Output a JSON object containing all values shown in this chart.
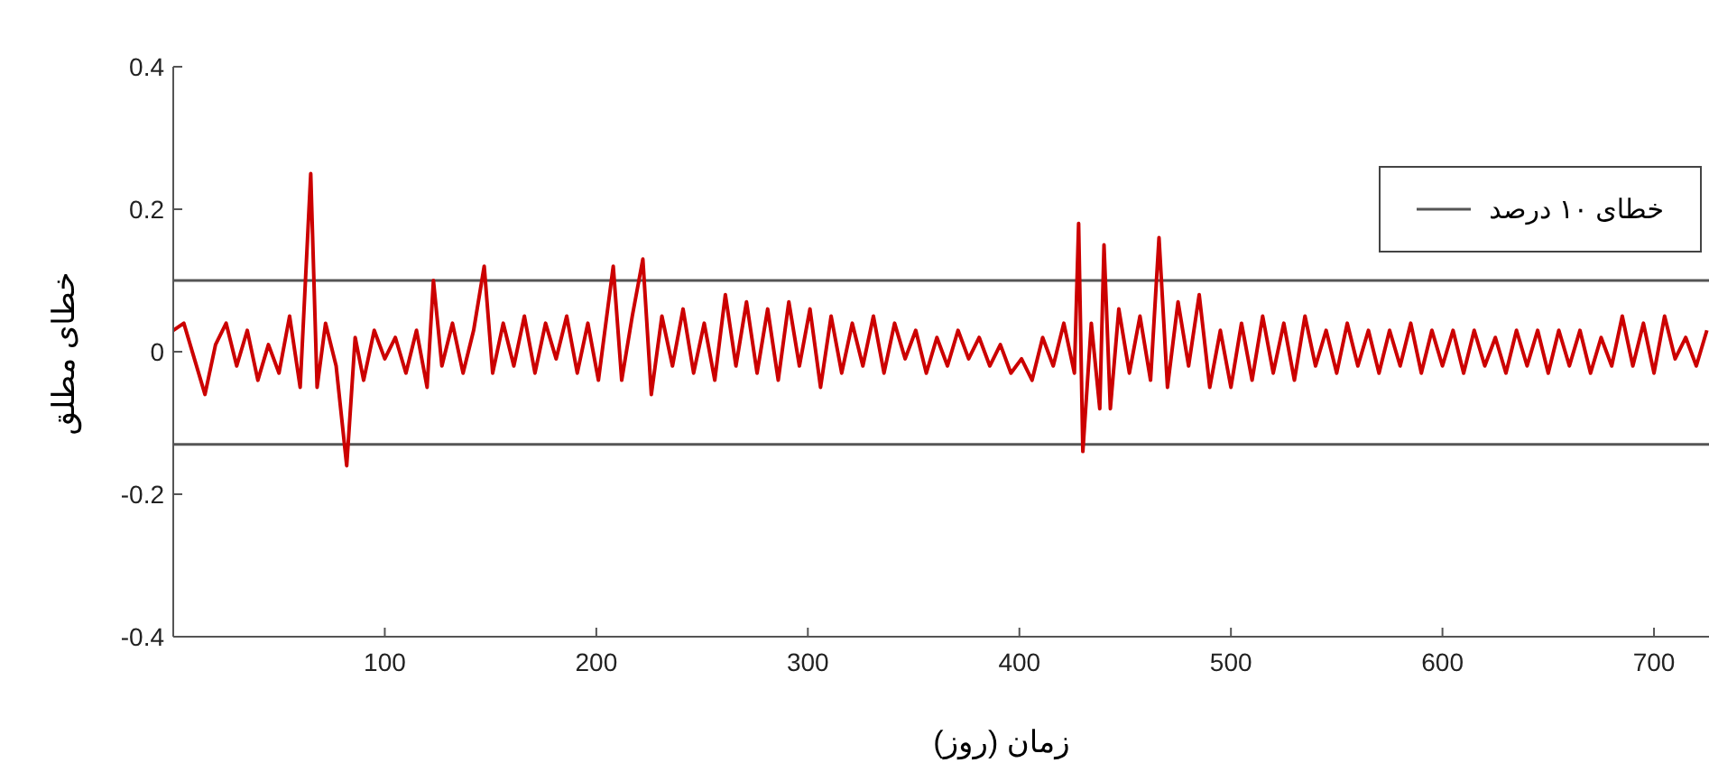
{
  "chart_data": {
    "type": "line",
    "xlabel": "زمان (روز)",
    "ylabel": "خطای مطلق",
    "x": [
      0,
      5,
      10,
      15,
      20,
      25,
      30,
      35,
      40,
      45,
      50,
      55,
      60,
      65,
      68,
      72,
      77,
      82,
      86,
      90,
      95,
      100,
      105,
      110,
      115,
      120,
      123,
      127,
      132,
      137,
      142,
      147,
      151,
      156,
      161,
      166,
      171,
      176,
      181,
      186,
      191,
      196,
      201,
      208,
      212,
      217,
      222,
      226,
      231,
      236,
      241,
      246,
      251,
      256,
      261,
      266,
      271,
      276,
      281,
      286,
      291,
      296,
      301,
      306,
      311,
      316,
      321,
      326,
      331,
      336,
      341,
      346,
      351,
      356,
      361,
      366,
      371,
      376,
      381,
      386,
      391,
      396,
      401,
      406,
      411,
      416,
      421,
      426,
      428,
      430,
      434,
      438,
      440,
      443,
      447,
      452,
      457,
      462,
      466,
      470,
      475,
      480,
      485,
      490,
      495,
      500,
      505,
      510,
      515,
      520,
      525,
      530,
      535,
      540,
      545,
      550,
      555,
      560,
      565,
      570,
      575,
      580,
      585,
      590,
      595,
      600,
      605,
      610,
      615,
      620,
      625,
      630,
      635,
      640,
      645,
      650,
      655,
      660,
      665,
      670,
      675,
      680,
      685,
      690,
      695,
      700,
      705,
      710,
      715,
      720,
      725
    ],
    "series": [
      {
        "color": "#cc0000",
        "values": [
          0.03,
          0.04,
          -0.01,
          -0.06,
          0.01,
          0.04,
          -0.02,
          0.03,
          -0.04,
          0.01,
          -0.03,
          0.05,
          -0.05,
          0.25,
          -0.05,
          0.04,
          -0.02,
          -0.16,
          0.02,
          -0.04,
          0.03,
          -0.01,
          0.02,
          -0.03,
          0.03,
          -0.05,
          0.1,
          -0.02,
          0.04,
          -0.03,
          0.03,
          0.12,
          -0.03,
          0.04,
          -0.02,
          0.05,
          -0.03,
          0.04,
          -0.01,
          0.05,
          -0.03,
          0.04,
          -0.04,
          0.12,
          -0.04,
          0.05,
          0.13,
          -0.06,
          0.05,
          -0.02,
          0.06,
          -0.03,
          0.04,
          -0.04,
          0.08,
          -0.02,
          0.07,
          -0.03,
          0.06,
          -0.04,
          0.07,
          -0.02,
          0.06,
          -0.05,
          0.05,
          -0.03,
          0.04,
          -0.02,
          0.05,
          -0.03,
          0.04,
          -0.01,
          0.03,
          -0.03,
          0.02,
          -0.02,
          0.03,
          -0.01,
          0.02,
          -0.02,
          0.01,
          -0.03,
          -0.01,
          -0.04,
          0.02,
          -0.02,
          0.04,
          -0.03,
          0.18,
          -0.14,
          0.04,
          -0.08,
          0.15,
          -0.08,
          0.06,
          -0.03,
          0.05,
          -0.04,
          0.16,
          -0.05,
          0.07,
          -0.02,
          0.08,
          -0.05,
          0.03,
          -0.05,
          0.04,
          -0.04,
          0.05,
          -0.03,
          0.04,
          -0.04,
          0.05,
          -0.02,
          0.03,
          -0.03,
          0.04,
          -0.02,
          0.03,
          -0.03,
          0.03,
          -0.02,
          0.04,
          -0.03,
          0.03,
          -0.02,
          0.03,
          -0.03,
          0.03,
          -0.02,
          0.02,
          -0.03,
          0.03,
          -0.02,
          0.03,
          -0.03,
          0.03,
          -0.02,
          0.03,
          -0.03,
          0.02,
          -0.02,
          0.05,
          -0.02,
          0.04,
          -0.03,
          0.05,
          -0.01,
          0.02,
          -0.02,
          0.03
        ]
      }
    ],
    "xlim": [
      0,
      726
    ],
    "xticks": [
      100,
      200,
      300,
      400,
      500,
      600,
      700
    ],
    "ylim": [
      -0.4,
      0.4
    ],
    "yticks": [
      -0.4,
      -0.2,
      0,
      0.2,
      0.4
    ],
    "ref_lines": [
      {
        "axis": "y",
        "value": 0.1,
        "label": "خطای ۱۰ درصد",
        "color": "#555555"
      },
      {
        "axis": "y",
        "value": -0.13,
        "color": "#555555"
      }
    ],
    "legend": "top right",
    "marker": "none",
    "line_style": "solid"
  }
}
